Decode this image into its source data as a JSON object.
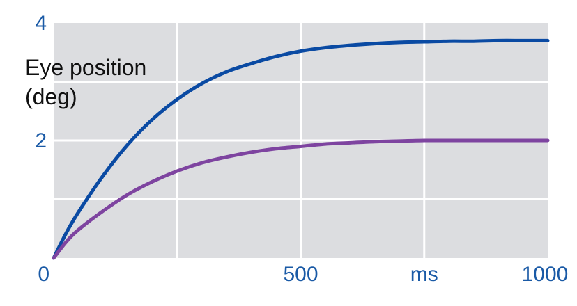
{
  "chart_data": {
    "type": "line",
    "title": "",
    "ylabel_lines": [
      "Eye position",
      "(deg)"
    ],
    "xlabel": "",
    "xlim": [
      0,
      1000
    ],
    "ylim": [
      0,
      4
    ],
    "x_ticks": [
      {
        "value": 0,
        "label": "0"
      },
      {
        "value": 500,
        "label": "500"
      },
      {
        "value": 750,
        "label": "ms"
      },
      {
        "value": 1000,
        "label": "1000"
      }
    ],
    "y_ticks": [
      {
        "value": 2,
        "label": "2"
      },
      {
        "value": 4,
        "label": "4"
      }
    ],
    "x_gridlines": [
      250,
      500,
      750
    ],
    "y_gridlines": [
      1,
      2,
      3
    ],
    "grid": true,
    "background_color": "#dcdde0",
    "gridline_color": "#ffffff",
    "tick_color": "#1a5aa6",
    "series": [
      {
        "color": "#0a4aa3",
        "x": [
          0,
          25,
          50,
          100,
          150,
          200,
          250,
          300,
          350,
          400,
          450,
          500,
          550,
          600,
          650,
          700,
          750,
          800,
          850,
          900,
          950,
          1000
        ],
        "y": [
          0,
          0.42,
          0.78,
          1.4,
          1.93,
          2.36,
          2.7,
          2.97,
          3.17,
          3.31,
          3.43,
          3.52,
          3.58,
          3.62,
          3.65,
          3.67,
          3.68,
          3.69,
          3.69,
          3.7,
          3.7,
          3.7
        ]
      },
      {
        "color": "#7e44a0",
        "x": [
          0,
          25,
          50,
          100,
          150,
          200,
          250,
          300,
          350,
          400,
          450,
          500,
          550,
          600,
          650,
          700,
          750,
          800,
          850,
          900,
          950,
          1000
        ],
        "y": [
          0,
          0.27,
          0.48,
          0.8,
          1.08,
          1.3,
          1.48,
          1.62,
          1.72,
          1.8,
          1.86,
          1.9,
          1.94,
          1.96,
          1.98,
          1.99,
          2.0,
          2.0,
          2.0,
          2.0,
          2.0,
          2.0
        ]
      }
    ]
  }
}
